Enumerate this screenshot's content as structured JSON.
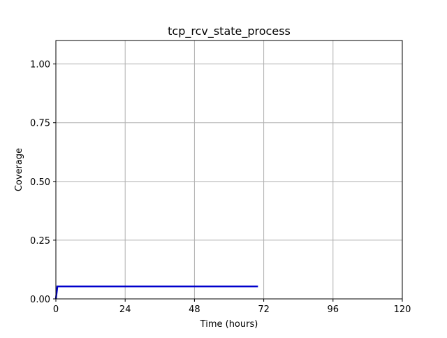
{
  "chart_data": {
    "type": "line",
    "title": "tcp_rcv_state_process",
    "xlabel": "Time (hours)",
    "ylabel": "Coverage",
    "xlim": [
      0,
      120
    ],
    "ylim": [
      0,
      1.1
    ],
    "xticks": [
      0,
      24,
      48,
      72,
      96,
      120
    ],
    "xtick_labels": [
      "0",
      "24",
      "48",
      "72",
      "96",
      "120"
    ],
    "yticks": [
      0,
      0.25,
      0.5,
      0.75,
      1.0
    ],
    "ytick_labels": [
      "0.00",
      "0.25",
      "0.50",
      "0.75",
      "1.00"
    ],
    "grid": true,
    "series": [
      {
        "color": "#0000cc",
        "x": [
          0,
          0.4,
          0.5,
          70
        ],
        "y": [
          0.0,
          0.04,
          0.053,
          0.053
        ]
      }
    ]
  }
}
